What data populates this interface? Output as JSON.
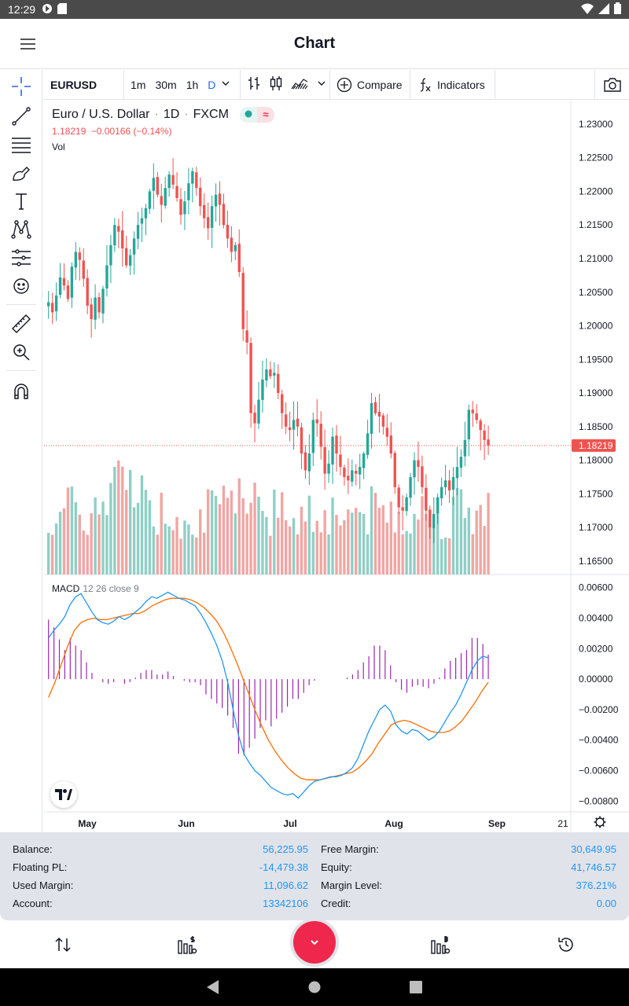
{
  "status_bar": {
    "time": "12:29"
  },
  "app_bar": {
    "title": "Chart"
  },
  "toolbar": {
    "symbol": "EURUSD",
    "timeframes": [
      "1m",
      "30m",
      "1h",
      "D"
    ],
    "active_timeframe": "D",
    "compare_label": "Compare",
    "indicators_label": "Indicators"
  },
  "legend": {
    "pair": "Euro / U.S. Dollar",
    "interval": "1D",
    "source": "FXCM",
    "last_price": "1.18219",
    "change": "−0.00166 (−0.14%)",
    "vol_label": "Vol"
  },
  "macd_legend": {
    "name": "MACD",
    "params": "12 26 close 9"
  },
  "colors": {
    "up": "#26a69a",
    "down": "#ef5350",
    "vol_up": "#8fcfc5",
    "vol_down": "#f0a6a4",
    "macd": "#2196f3",
    "signal": "#ff6d00",
    "hist": "#9c27b0",
    "accent": "#2962ff",
    "fab": "#f0274c"
  },
  "chart_data": [
    {
      "type": "candlestick",
      "title": "Euro / U.S. Dollar · 1D · FXCM",
      "x_ticks": [
        "May",
        "Jun",
        "Jul",
        "Aug",
        "Sep",
        "21"
      ],
      "y_ticks": [
        "1.23000",
        "1.22500",
        "1.22000",
        "1.21500",
        "1.21000",
        "1.20500",
        "1.20000",
        "1.19500",
        "1.19000",
        "1.18500",
        "1.18000",
        "1.17500",
        "1.17000",
        "1.16500"
      ],
      "ylim": [
        1.163,
        1.2335
      ],
      "current_price_label": "1.18219",
      "current_price": 1.18219,
      "close_path": [
        1.2035,
        1.202,
        1.2045,
        1.2072,
        1.206,
        1.204,
        1.2088,
        1.211,
        1.2098,
        1.207,
        1.203,
        1.201,
        1.2042,
        1.202,
        1.2055,
        1.209,
        1.212,
        1.215,
        1.214,
        1.2115,
        1.209,
        1.2105,
        1.213,
        1.215,
        1.216,
        1.2175,
        1.22,
        1.222,
        1.2195,
        1.218,
        1.2205,
        1.2225,
        1.221,
        1.219,
        1.2165,
        1.2185,
        1.2212,
        1.223,
        1.2205,
        1.2178,
        1.216,
        1.2145,
        1.2178,
        1.2195,
        1.218,
        1.215,
        1.213,
        1.211,
        1.212,
        1.208,
        1.1995,
        1.1975,
        1.187,
        1.1855,
        1.189,
        1.192,
        1.1935,
        1.1925,
        1.193,
        1.19,
        1.187,
        1.185,
        1.1845,
        1.186,
        1.185,
        1.181,
        1.1785,
        1.181,
        1.186,
        1.1855,
        1.182,
        1.178,
        1.1795,
        1.1835,
        1.181,
        1.179,
        1.1775,
        1.177,
        1.1785,
        1.178,
        1.179,
        1.181,
        1.184,
        1.1885,
        1.187,
        1.1865,
        1.185,
        1.1835,
        1.181,
        1.176,
        1.173,
        1.1725,
        1.1745,
        1.1775,
        1.18,
        1.179,
        1.176,
        1.1725,
        1.17,
        1.172,
        1.1745,
        1.176,
        1.177,
        1.1755,
        1.1775,
        1.179,
        1.1805,
        1.183,
        1.1875,
        1.187,
        1.186,
        1.1845,
        1.183,
        1.1822
      ]
    },
    {
      "type": "line",
      "title": "MACD 12 26 close 9",
      "y_ticks": [
        "0.00600",
        "0.00400",
        "0.00200",
        "0.00000",
        "−0.00200",
        "−0.00400",
        "−0.00600",
        "−0.00800"
      ],
      "ylim": [
        -0.0086,
        0.0066
      ],
      "macd_path": [
        0.0027,
        0.0032,
        0.0036,
        0.0041,
        0.0049,
        0.0054,
        0.0056,
        0.005,
        0.0044,
        0.0039,
        0.0037,
        0.0036,
        0.0038,
        0.0041,
        0.0039,
        0.0041,
        0.0044,
        0.0047,
        0.0051,
        0.0054,
        0.0053,
        0.0055,
        0.0057,
        0.0055,
        0.0053,
        0.0052,
        0.005,
        0.0048,
        0.0043,
        0.0037,
        0.003,
        0.0022,
        0.0012,
        -0.0002,
        -0.002,
        -0.0037,
        -0.0049,
        -0.0055,
        -0.006,
        -0.0063,
        -0.0067,
        -0.0071,
        -0.0073,
        -0.0075,
        -0.0076,
        -0.0075,
        -0.0078,
        -0.0074,
        -0.007,
        -0.0067,
        -0.0066,
        -0.0065,
        -0.0064,
        -0.0064,
        -0.0063,
        -0.0061,
        -0.0058,
        -0.0052,
        -0.0043,
        -0.0034,
        -0.0027,
        -0.002,
        -0.0017,
        -0.0021,
        -0.003,
        -0.0034,
        -0.0036,
        -0.0033,
        -0.0034,
        -0.0037,
        -0.004,
        -0.0038,
        -0.0034,
        -0.0028,
        -0.0022,
        -0.0017,
        -0.001,
        -0.0002,
        0.0006,
        0.0012,
        0.0015,
        0.0014
      ],
      "signal_path": [
        -0.0012,
        -0.0002,
        0.001,
        0.0022,
        0.0032,
        0.0037,
        0.0039,
        0.004,
        0.0039,
        0.0039,
        0.004,
        0.0041,
        0.0042,
        0.0043,
        0.0043,
        0.0045,
        0.0048,
        0.005,
        0.0052,
        0.0053,
        0.0053,
        0.0053,
        0.0052,
        0.005,
        0.0047,
        0.0043,
        0.0038,
        0.0031,
        0.0022,
        0.0012,
        0.0001,
        -0.001,
        -0.0021,
        -0.0031,
        -0.004,
        -0.0047,
        -0.0053,
        -0.0058,
        -0.0062,
        -0.0065,
        -0.0066,
        -0.0066,
        -0.0066,
        -0.0065,
        -0.0064,
        -0.0063,
        -0.0062,
        -0.0061,
        -0.0058,
        -0.0054,
        -0.0049,
        -0.0042,
        -0.0036,
        -0.003,
        -0.0028,
        -0.0027,
        -0.0028,
        -0.003,
        -0.0032,
        -0.0034,
        -0.0035,
        -0.0035,
        -0.0034,
        -0.0031,
        -0.0027,
        -0.0021,
        -0.0015,
        -0.0008,
        -0.0002
      ]
    }
  ],
  "account": {
    "left": [
      {
        "label": "Balance:",
        "value": "56,225.95"
      },
      {
        "label": "Floating PL:",
        "value": "-14,479.38"
      },
      {
        "label": "Used Margin:",
        "value": "11,096.62"
      },
      {
        "label": "Account:",
        "value": "13342106"
      }
    ],
    "right": [
      {
        "label": "Free Margin:",
        "value": "30,649.95"
      },
      {
        "label": "Equity:",
        "value": "41,746.57"
      },
      {
        "label": "Margin Level:",
        "value": "376.21%"
      },
      {
        "label": "Credit:",
        "value": "0.00"
      }
    ]
  },
  "icons": [
    "menu-icon",
    "crosshair-icon",
    "trend-line-icon",
    "fib-icon",
    "brush-icon",
    "text-icon",
    "pattern-icon",
    "prediction-icon",
    "emoji-icon",
    "ruler-icon",
    "zoom-in-icon",
    "magnet-icon",
    "camera-icon",
    "settings-icon",
    "trade-icon",
    "price-icon",
    "history-icon",
    "chevron-down-icon"
  ]
}
